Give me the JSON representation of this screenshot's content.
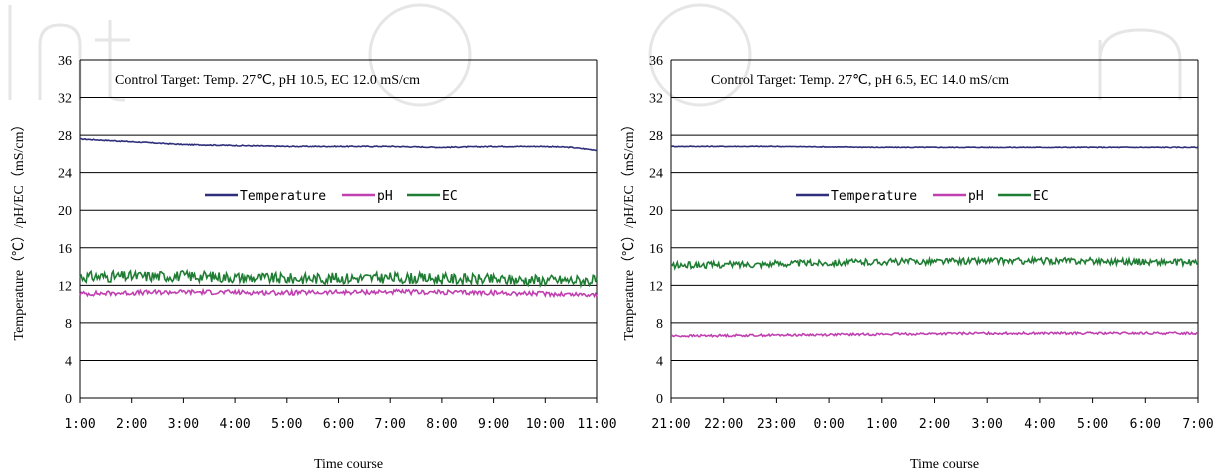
{
  "colors": {
    "temperature": "#2e2e7a",
    "ph": "#c040b0",
    "ec": "#1e7d32",
    "grid": "#000000",
    "watermark": "#e6e6e6"
  },
  "chart_data": [
    {
      "type": "line",
      "annotation": "Control Target: Temp. 27℃, pH 10.5, EC 12.0 mS/cm",
      "xlabel": "Time course",
      "ylabel": "Temperature（℃）/pH/EC（mS/cm）",
      "ylim": [
        0,
        36
      ],
      "yticks": [
        "0",
        "4",
        "8",
        "12",
        "16",
        "20",
        "24",
        "28",
        "32",
        "36"
      ],
      "xticks": [
        "1:00",
        "2:00",
        "3:00",
        "4:00",
        "5:00",
        "6:00",
        "7:00",
        "8:00",
        "9:00",
        "10:00",
        "11:00"
      ],
      "grid": true,
      "legend_position": "center",
      "series": [
        {
          "name": "Temperature",
          "x": [
            0,
            1,
            2,
            3,
            4,
            5,
            6,
            7,
            8,
            9,
            9.5,
            10
          ],
          "values": [
            27.6,
            27.3,
            27.0,
            26.9,
            26.8,
            26.8,
            26.8,
            26.7,
            26.8,
            26.8,
            26.7,
            26.4
          ],
          "noise": 0.05
        },
        {
          "name": "pH",
          "x": [
            0,
            2,
            4,
            6,
            8,
            10
          ],
          "values": [
            11.1,
            11.3,
            11.2,
            11.3,
            11.2,
            11.0
          ],
          "noise": 0.25
        },
        {
          "name": "EC",
          "x": [
            0,
            2,
            4,
            6,
            8,
            10
          ],
          "values": [
            12.9,
            13.0,
            12.7,
            12.8,
            12.6,
            12.5
          ],
          "noise": 0.6
        }
      ]
    },
    {
      "type": "line",
      "annotation": "Control Target: Temp. 27℃, pH 6.5, EC 14.0 mS/cm",
      "xlabel": "Time course",
      "ylabel": "Temperature（℃）/pH/EC（mS/cm）",
      "ylim": [
        0,
        36
      ],
      "yticks": [
        "0",
        "4",
        "8",
        "12",
        "16",
        "20",
        "24",
        "28",
        "32",
        "36"
      ],
      "xticks": [
        "21:00",
        "22:00",
        "23:00",
        "0:00",
        "1:00",
        "2:00",
        "3:00",
        "4:00",
        "5:00",
        "6:00",
        "7:00"
      ],
      "grid": true,
      "legend_position": "center",
      "series": [
        {
          "name": "Temperature",
          "x": [
            0,
            2,
            4,
            6,
            8,
            10
          ],
          "values": [
            26.8,
            26.8,
            26.7,
            26.7,
            26.7,
            26.7
          ],
          "noise": 0.04
        },
        {
          "name": "pH",
          "x": [
            0,
            2,
            4,
            6,
            8,
            10
          ],
          "values": [
            6.6,
            6.7,
            6.8,
            6.9,
            6.9,
            6.9
          ],
          "noise": 0.12
        },
        {
          "name": "EC",
          "x": [
            0,
            2,
            4,
            6,
            8,
            10
          ],
          "values": [
            14.1,
            14.3,
            14.5,
            14.6,
            14.6,
            14.4
          ],
          "noise": 0.35
        }
      ]
    }
  ]
}
